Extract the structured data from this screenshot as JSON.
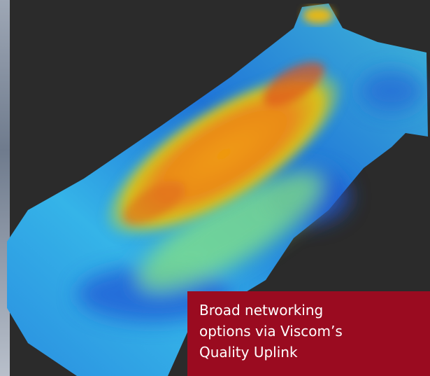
{
  "caption": {
    "lines": [
      "Broad networking",
      "options via Viscom’s",
      "Quality Uplink"
    ]
  }
}
